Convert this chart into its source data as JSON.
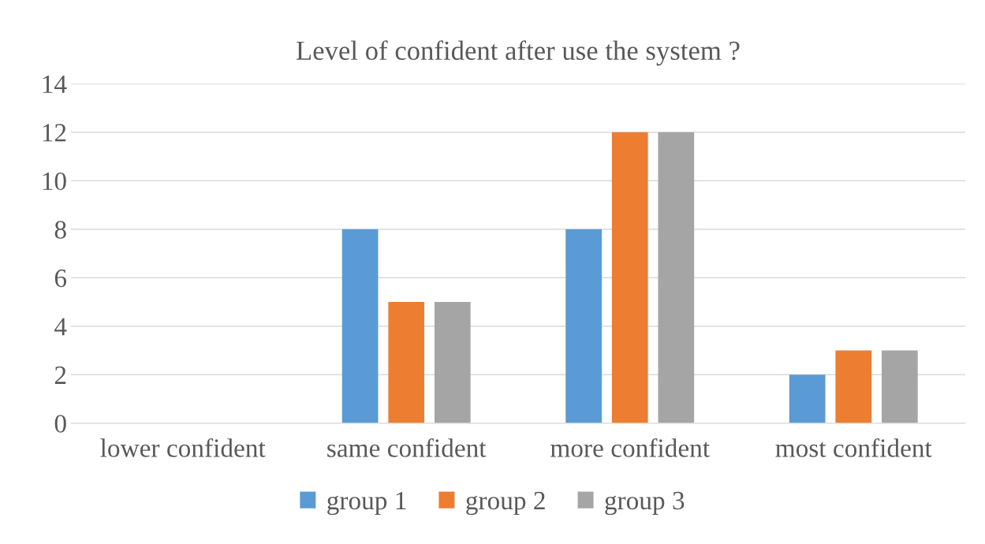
{
  "chart_data": {
    "type": "bar",
    "title": "Level of confident after use the system ?",
    "categories": [
      "lower confident",
      "same confident",
      "more confident",
      "most confident"
    ],
    "series": [
      {
        "name": "group 1",
        "color": "#5b9bd5",
        "values": [
          0,
          8,
          8,
          2
        ]
      },
      {
        "name": "group 2",
        "color": "#ed7d31",
        "values": [
          0,
          5,
          12,
          3
        ]
      },
      {
        "name": "group 3",
        "color": "#a5a5a5",
        "values": [
          0,
          5,
          12,
          3
        ]
      }
    ],
    "ylim": [
      0,
      14
    ],
    "yticks": [
      0,
      2,
      4,
      6,
      8,
      10,
      12,
      14
    ],
    "grid": "y",
    "legend": "bottom"
  }
}
